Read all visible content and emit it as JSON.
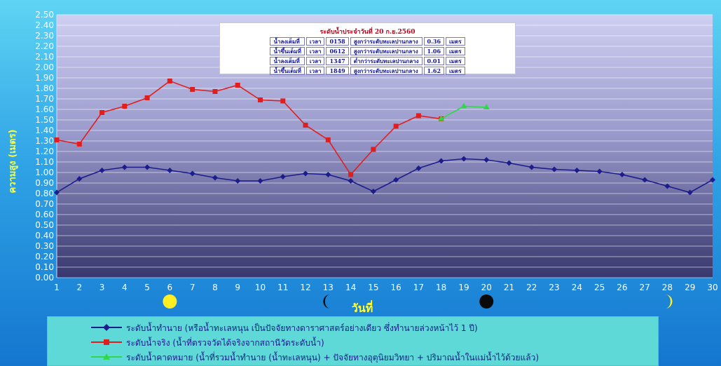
{
  "chart_data": {
    "type": "line",
    "x": [
      1,
      2,
      3,
      4,
      5,
      6,
      7,
      8,
      9,
      10,
      11,
      12,
      13,
      14,
      15,
      16,
      17,
      18,
      19,
      20,
      21,
      22,
      23,
      24,
      25,
      26,
      27,
      28,
      29,
      30
    ],
    "ylim": [
      0,
      2.5
    ],
    "ytick_step": 0.1,
    "grid": true,
    "ylabel": "ความสูง (เมตร)",
    "xlabel": "วันที่",
    "series": [
      {
        "name": "ระดับน้ำทำนาย (หรือน้ำทะเลหนุน เป็นปัจจัยทางดาราศาสตร์อย่างเดียว ซึ่งทำนายล่วงหน้าไว้ 1 ปี)",
        "color": "#1c1c8c",
        "marker": "diamond",
        "x": [
          1,
          2,
          3,
          4,
          5,
          6,
          7,
          8,
          9,
          10,
          11,
          12,
          13,
          14,
          15,
          16,
          17,
          18,
          19,
          20,
          21,
          22,
          23,
          24,
          25,
          26,
          27,
          28,
          29,
          30
        ],
        "values": [
          0.81,
          0.94,
          1.02,
          1.05,
          1.05,
          1.02,
          0.99,
          0.95,
          0.92,
          0.92,
          0.96,
          0.99,
          0.98,
          0.92,
          0.82,
          0.93,
          1.04,
          1.11,
          1.13,
          1.12,
          1.09,
          1.05,
          1.03,
          1.02,
          1.01,
          0.98,
          0.93,
          0.87,
          0.81,
          0.93
        ]
      },
      {
        "name": "ระดับน้ำจริง (น้ำที่ตรวจวัดได้จริงจากสถานีวัดระดับน้ำ)",
        "color": "#e01e1e",
        "marker": "square",
        "x": [
          1,
          2,
          3,
          4,
          5,
          6,
          7,
          8,
          9,
          10,
          11,
          12,
          13,
          14,
          15,
          16,
          17,
          18
        ],
        "values": [
          1.31,
          1.27,
          1.57,
          1.63,
          1.71,
          1.87,
          1.79,
          1.77,
          1.83,
          1.69,
          1.68,
          1.45,
          1.31,
          0.98,
          1.22,
          1.44,
          1.54,
          1.51
        ]
      },
      {
        "name": "ระดับน้ำคาดหมาย (น้ำที่รวมน้ำทำนาย (น้ำทะเลหนุน) + ปัจจัยทางอุตุนิยมวิทยา + ปริมาณน้ำในแม่น้ำไว้ด้วยแล้ว)",
        "color": "#2ed84a",
        "marker": "triangle",
        "x": [
          18,
          19,
          20
        ],
        "values": [
          1.51,
          1.63,
          1.62
        ]
      }
    ],
    "moon_phases": [
      {
        "day": 6,
        "phase": "full"
      },
      {
        "day": 13,
        "phase": "waning-crescent"
      },
      {
        "day": 20,
        "phase": "new"
      },
      {
        "day": 28,
        "phase": "waxing-crescent"
      }
    ]
  },
  "tide_table": {
    "title": "ระดับน้ำประจำวันที่  20 ก.ย.2560",
    "rows": [
      {
        "type": "น้ำลงเต็มที่",
        "time_label": "เวลา",
        "time": "0158",
        "ref": "สูงกว่าระดับทะเลปานกลาง",
        "level": "0.36",
        "unit": "เมตร"
      },
      {
        "type": "น้ำขึ้นเต็มที่",
        "time_label": "เวลา",
        "time": "0612",
        "ref": "สูงกว่าระดับทะเลปานกลาง",
        "level": "1.06",
        "unit": "เมตร"
      },
      {
        "type": "น้ำลงเต็มที่",
        "time_label": "เวลา",
        "time": "1347",
        "ref": "ต่ำกว่าระดับทะเลปานกลาง",
        "level": "0.01",
        "unit": "เมตร"
      },
      {
        "type": "น้ำขึ้นเต็มที่",
        "time_label": "เวลา",
        "time": "1849",
        "ref": "สูงกว่าระดับทะเลปานกลาง",
        "level": "1.62",
        "unit": "เมตร"
      }
    ]
  },
  "colors": {
    "plot_top": "#c8c8f0",
    "plot_bottom": "#3b3b73"
  }
}
